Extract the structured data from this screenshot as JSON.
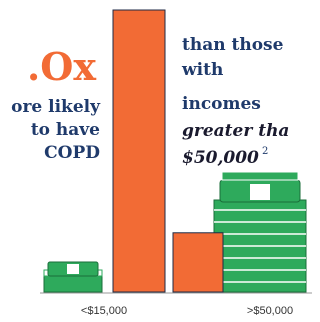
{
  "chart_data": {
    "type": "bar",
    "categories": [
      "<$15,000",
      ">$50,000"
    ],
    "values": [
      100,
      21
    ],
    "color": "#f26b35",
    "ylim": [
      0,
      100
    ],
    "annotations": {
      "left": [
        ".Ox",
        "ore likely",
        "to have",
        "COPD"
      ],
      "right": [
        "than those",
        "with",
        "incomes"
      ],
      "right_italic": [
        "greater tha",
        "$50,000"
      ],
      "footnote": "2"
    }
  }
}
